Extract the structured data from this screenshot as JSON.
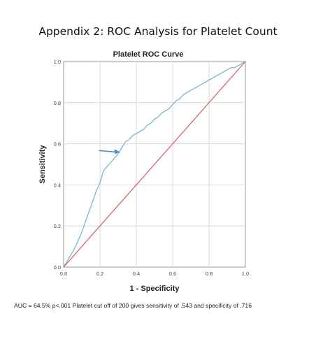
{
  "page_title": "Appendix 2: ROC Analysis for Platelet Count",
  "footnote": "AUC = 64.5%  p<.001  Platelet cut off of 200 gives sensitivity of .543 and specificity of .716",
  "colors": {
    "roc_curve": "#7fb5d1",
    "reference_line": "#d9646c",
    "arrow": "#4a8fbf",
    "grid": "#d9d9d9",
    "frame": "#9a9a9a"
  },
  "chart_data": {
    "type": "line",
    "title": "Platelet ROC Curve",
    "xlabel": "1 - Specificity",
    "ylabel": "Sensitivity",
    "xlim": [
      0,
      1
    ],
    "ylim": [
      0,
      1
    ],
    "x_ticks": [
      "0.0",
      "0.2",
      "0.4",
      "0.6",
      "0.8",
      "1.0"
    ],
    "y_ticks": [
      "0.0",
      "0.2",
      "0.4",
      "0.6",
      "0.8",
      "1.0"
    ],
    "grid": true,
    "series": [
      {
        "style": "roc",
        "x": [
          0.0,
          0.02,
          0.04,
          0.06,
          0.08,
          0.1,
          0.12,
          0.14,
          0.16,
          0.18,
          0.2,
          0.21,
          0.22,
          0.24,
          0.26,
          0.28,
          0.3,
          0.32,
          0.34,
          0.36,
          0.38,
          0.4,
          0.42,
          0.44,
          0.46,
          0.48,
          0.5,
          0.52,
          0.54,
          0.56,
          0.58,
          0.6,
          0.62,
          0.64,
          0.66,
          0.68,
          0.7,
          0.72,
          0.74,
          0.76,
          0.78,
          0.8,
          0.82,
          0.84,
          0.86,
          0.88,
          0.9,
          0.92,
          0.94,
          0.96,
          0.98,
          1.0
        ],
        "y": [
          0.0,
          0.03,
          0.06,
          0.09,
          0.13,
          0.17,
          0.22,
          0.27,
          0.32,
          0.37,
          0.41,
          0.44,
          0.47,
          0.49,
          0.51,
          0.53,
          0.55,
          0.58,
          0.61,
          0.62,
          0.64,
          0.65,
          0.66,
          0.67,
          0.69,
          0.7,
          0.72,
          0.73,
          0.75,
          0.76,
          0.77,
          0.79,
          0.81,
          0.82,
          0.84,
          0.85,
          0.86,
          0.87,
          0.88,
          0.89,
          0.9,
          0.91,
          0.92,
          0.93,
          0.94,
          0.95,
          0.96,
          0.97,
          0.97,
          0.98,
          0.99,
          1.0
        ]
      },
      {
        "style": "reference",
        "x": [
          0.0,
          1.0
        ],
        "y": [
          0.0,
          1.0
        ]
      }
    ],
    "annotations": [
      {
        "type": "arrow",
        "x": 0.31,
        "y": 0.56
      }
    ]
  }
}
